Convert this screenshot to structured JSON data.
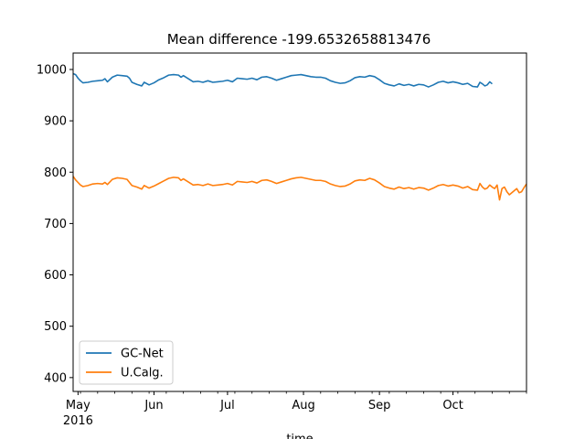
{
  "chart_data": {
    "type": "line",
    "title": "Mean difference -199.6532658813476",
    "xlabel": "time",
    "ylabel": "",
    "xlim": [
      "2016-04-29",
      "2016-10-31"
    ],
    "ylim": [
      373,
      1032
    ],
    "grid": false,
    "legend_position": "lower-left",
    "y_ticks": [
      400,
      500,
      600,
      700,
      800,
      900,
      1000
    ],
    "x_ticks": [
      {
        "date": "2016-05-01",
        "label": "May",
        "sublabel": "2016"
      },
      {
        "date": "2016-06-01",
        "label": "Jun"
      },
      {
        "date": "2016-07-01",
        "label": "Jul"
      },
      {
        "date": "2016-08-01",
        "label": "Aug"
      },
      {
        "date": "2016-09-01",
        "label": "Sep"
      },
      {
        "date": "2016-10-01",
        "label": "Oct"
      }
    ],
    "series": [
      {
        "name": "GC-Net",
        "color": "#1f77b4",
        "points": [
          [
            "2016-04-29",
            992
          ],
          [
            "2016-04-30",
            990
          ],
          [
            "2016-05-01",
            983
          ],
          [
            "2016-05-02",
            978
          ],
          [
            "2016-05-03",
            974
          ],
          [
            "2016-05-05",
            975
          ],
          [
            "2016-05-07",
            977
          ],
          [
            "2016-05-09",
            978
          ],
          [
            "2016-05-11",
            979
          ],
          [
            "2016-05-12",
            982
          ],
          [
            "2016-05-13",
            976
          ],
          [
            "2016-05-15",
            985
          ],
          [
            "2016-05-17",
            989
          ],
          [
            "2016-05-19",
            988
          ],
          [
            "2016-05-21",
            987
          ],
          [
            "2016-05-22",
            983
          ],
          [
            "2016-05-23",
            975
          ],
          [
            "2016-05-25",
            971
          ],
          [
            "2016-05-27",
            968
          ],
          [
            "2016-05-28",
            975
          ],
          [
            "2016-05-30",
            970
          ],
          [
            "2016-06-01",
            974
          ],
          [
            "2016-06-03",
            980
          ],
          [
            "2016-06-05",
            984
          ],
          [
            "2016-06-07",
            989
          ],
          [
            "2016-06-09",
            990
          ],
          [
            "2016-06-11",
            989
          ],
          [
            "2016-06-12",
            985
          ],
          [
            "2016-06-13",
            988
          ],
          [
            "2016-06-15",
            982
          ],
          [
            "2016-06-17",
            976
          ],
          [
            "2016-06-19",
            977
          ],
          [
            "2016-06-21",
            975
          ],
          [
            "2016-06-23",
            978
          ],
          [
            "2016-06-25",
            975
          ],
          [
            "2016-06-27",
            976
          ],
          [
            "2016-06-29",
            977
          ],
          [
            "2016-07-01",
            979
          ],
          [
            "2016-07-03",
            976
          ],
          [
            "2016-07-05",
            983
          ],
          [
            "2016-07-07",
            982
          ],
          [
            "2016-07-09",
            981
          ],
          [
            "2016-07-11",
            983
          ],
          [
            "2016-07-13",
            980
          ],
          [
            "2016-07-15",
            985
          ],
          [
            "2016-07-17",
            986
          ],
          [
            "2016-07-19",
            983
          ],
          [
            "2016-07-21",
            979
          ],
          [
            "2016-07-23",
            982
          ],
          [
            "2016-07-25",
            985
          ],
          [
            "2016-07-27",
            988
          ],
          [
            "2016-07-29",
            989
          ],
          [
            "2016-07-31",
            990
          ],
          [
            "2016-08-02",
            988
          ],
          [
            "2016-08-04",
            986
          ],
          [
            "2016-08-06",
            985
          ],
          [
            "2016-08-08",
            985
          ],
          [
            "2016-08-10",
            983
          ],
          [
            "2016-08-12",
            978
          ],
          [
            "2016-08-14",
            975
          ],
          [
            "2016-08-16",
            973
          ],
          [
            "2016-08-18",
            974
          ],
          [
            "2016-08-20",
            978
          ],
          [
            "2016-08-22",
            984
          ],
          [
            "2016-08-24",
            986
          ],
          [
            "2016-08-26",
            985
          ],
          [
            "2016-08-28",
            988
          ],
          [
            "2016-08-30",
            986
          ],
          [
            "2016-09-01",
            980
          ],
          [
            "2016-09-03",
            973
          ],
          [
            "2016-09-05",
            970
          ],
          [
            "2016-09-07",
            968
          ],
          [
            "2016-09-09",
            972
          ],
          [
            "2016-09-11",
            969
          ],
          [
            "2016-09-13",
            971
          ],
          [
            "2016-09-15",
            968
          ],
          [
            "2016-09-17",
            971
          ],
          [
            "2016-09-19",
            970
          ],
          [
            "2016-09-21",
            966
          ],
          [
            "2016-09-23",
            970
          ],
          [
            "2016-09-25",
            975
          ],
          [
            "2016-09-27",
            977
          ],
          [
            "2016-09-29",
            974
          ],
          [
            "2016-10-01",
            976
          ],
          [
            "2016-10-03",
            974
          ],
          [
            "2016-10-05",
            971
          ],
          [
            "2016-10-07",
            973
          ],
          [
            "2016-10-09",
            967
          ],
          [
            "2016-10-11",
            966
          ],
          [
            "2016-10-12",
            975
          ],
          [
            "2016-10-13",
            972
          ],
          [
            "2016-10-14",
            968
          ],
          [
            "2016-10-15",
            970
          ],
          [
            "2016-10-16",
            976
          ],
          [
            "2016-10-17",
            972
          ]
        ]
      },
      {
        "name": "U.Calg.",
        "color": "#ff7f0e",
        "points": [
          [
            "2016-04-29",
            792
          ],
          [
            "2016-04-30",
            785
          ],
          [
            "2016-05-01",
            780
          ],
          [
            "2016-05-02",
            775
          ],
          [
            "2016-05-03",
            772
          ],
          [
            "2016-05-05",
            774
          ],
          [
            "2016-05-07",
            777
          ],
          [
            "2016-05-09",
            778
          ],
          [
            "2016-05-11",
            777
          ],
          [
            "2016-05-12",
            780
          ],
          [
            "2016-05-13",
            776
          ],
          [
            "2016-05-15",
            786
          ],
          [
            "2016-05-17",
            789
          ],
          [
            "2016-05-19",
            788
          ],
          [
            "2016-05-21",
            786
          ],
          [
            "2016-05-22",
            780
          ],
          [
            "2016-05-23",
            774
          ],
          [
            "2016-05-25",
            771
          ],
          [
            "2016-05-27",
            767
          ],
          [
            "2016-05-28",
            774
          ],
          [
            "2016-05-30",
            769
          ],
          [
            "2016-06-01",
            773
          ],
          [
            "2016-06-03",
            778
          ],
          [
            "2016-06-05",
            783
          ],
          [
            "2016-06-07",
            788
          ],
          [
            "2016-06-09",
            790
          ],
          [
            "2016-06-11",
            789
          ],
          [
            "2016-06-12",
            784
          ],
          [
            "2016-06-13",
            787
          ],
          [
            "2016-06-15",
            781
          ],
          [
            "2016-06-17",
            775
          ],
          [
            "2016-06-19",
            776
          ],
          [
            "2016-06-21",
            774
          ],
          [
            "2016-06-23",
            777
          ],
          [
            "2016-06-25",
            774
          ],
          [
            "2016-06-27",
            775
          ],
          [
            "2016-06-29",
            776
          ],
          [
            "2016-07-01",
            778
          ],
          [
            "2016-07-03",
            775
          ],
          [
            "2016-07-05",
            782
          ],
          [
            "2016-07-07",
            781
          ],
          [
            "2016-07-09",
            780
          ],
          [
            "2016-07-11",
            782
          ],
          [
            "2016-07-13",
            779
          ],
          [
            "2016-07-15",
            784
          ],
          [
            "2016-07-17",
            785
          ],
          [
            "2016-07-19",
            782
          ],
          [
            "2016-07-21",
            778
          ],
          [
            "2016-07-23",
            781
          ],
          [
            "2016-07-25",
            784
          ],
          [
            "2016-07-27",
            787
          ],
          [
            "2016-07-29",
            789
          ],
          [
            "2016-07-31",
            790
          ],
          [
            "2016-08-02",
            788
          ],
          [
            "2016-08-04",
            786
          ],
          [
            "2016-08-06",
            784
          ],
          [
            "2016-08-08",
            784
          ],
          [
            "2016-08-10",
            782
          ],
          [
            "2016-08-12",
            777
          ],
          [
            "2016-08-14",
            774
          ],
          [
            "2016-08-16",
            772
          ],
          [
            "2016-08-18",
            773
          ],
          [
            "2016-08-20",
            777
          ],
          [
            "2016-08-22",
            783
          ],
          [
            "2016-08-24",
            785
          ],
          [
            "2016-08-26",
            784
          ],
          [
            "2016-08-28",
            788
          ],
          [
            "2016-08-30",
            785
          ],
          [
            "2016-09-01",
            779
          ],
          [
            "2016-09-03",
            772
          ],
          [
            "2016-09-05",
            769
          ],
          [
            "2016-09-07",
            767
          ],
          [
            "2016-09-09",
            771
          ],
          [
            "2016-09-11",
            768
          ],
          [
            "2016-09-13",
            770
          ],
          [
            "2016-09-15",
            767
          ],
          [
            "2016-09-17",
            770
          ],
          [
            "2016-09-19",
            769
          ],
          [
            "2016-09-21",
            765
          ],
          [
            "2016-09-23",
            769
          ],
          [
            "2016-09-25",
            774
          ],
          [
            "2016-09-27",
            776
          ],
          [
            "2016-09-29",
            773
          ],
          [
            "2016-10-01",
            775
          ],
          [
            "2016-10-03",
            773
          ],
          [
            "2016-10-05",
            769
          ],
          [
            "2016-10-07",
            772
          ],
          [
            "2016-10-09",
            766
          ],
          [
            "2016-10-11",
            765
          ],
          [
            "2016-10-12",
            778
          ],
          [
            "2016-10-13",
            771
          ],
          [
            "2016-10-14",
            767
          ],
          [
            "2016-10-15",
            769
          ],
          [
            "2016-10-16",
            775
          ],
          [
            "2016-10-17",
            771
          ],
          [
            "2016-10-18",
            768
          ],
          [
            "2016-10-19",
            775
          ],
          [
            "2016-10-20",
            746
          ],
          [
            "2016-10-21",
            768
          ],
          [
            "2016-10-22",
            771
          ],
          [
            "2016-10-23",
            762
          ],
          [
            "2016-10-24",
            756
          ],
          [
            "2016-10-25",
            760
          ],
          [
            "2016-10-26",
            764
          ],
          [
            "2016-10-27",
            768
          ],
          [
            "2016-10-28",
            760
          ],
          [
            "2016-10-29",
            762
          ],
          [
            "2016-10-30",
            770
          ],
          [
            "2016-10-31",
            777
          ]
        ]
      }
    ]
  }
}
